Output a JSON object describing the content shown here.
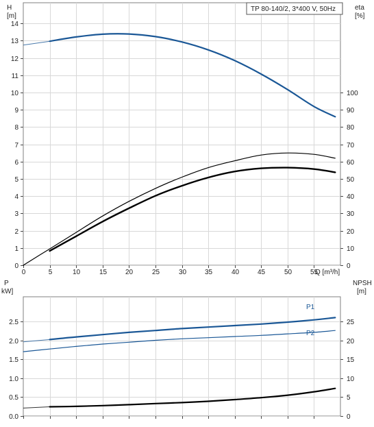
{
  "title": "TP 80-140/2, 3*400 V, 50Hz",
  "colors": {
    "blue": "#1a5796",
    "black": "#000000"
  },
  "chart_data": [
    {
      "type": "line",
      "x_label": "Q [m³/h]",
      "x_ticks": [
        0,
        5,
        10,
        15,
        20,
        25,
        30,
        35,
        40,
        45,
        50,
        55
      ],
      "xlim": [
        0,
        60
      ],
      "left_axis": {
        "label_top": "H",
        "label_unit": "[m]",
        "ticks": [
          0,
          1,
          2,
          3,
          4,
          5,
          6,
          7,
          8,
          9,
          10,
          11,
          12,
          13,
          14
        ],
        "ylim": [
          0,
          15.2
        ]
      },
      "right_axis": {
        "label_top": "eta",
        "label_unit": "[%]",
        "ticks": [
          0,
          10,
          20,
          30,
          40,
          50,
          60,
          70,
          80,
          90,
          100
        ],
        "ylim": [
          0,
          152
        ]
      },
      "series": [
        {
          "axis": "left",
          "color": "#1a5796",
          "style": "solid",
          "width": 2.2,
          "x": [
            5,
            10,
            15,
            20,
            25,
            30,
            35,
            40,
            45,
            50,
            55,
            59
          ],
          "y": [
            12.97,
            13.22,
            13.38,
            13.39,
            13.24,
            12.93,
            12.47,
            11.85,
            11.07,
            10.17,
            9.19,
            8.6
          ],
          "extension": {
            "x": [
              0,
              5
            ],
            "y": [
              12.75,
              12.97
            ]
          }
        },
        {
          "axis": "right",
          "color": "#000000",
          "style": "solid",
          "width": 1.2,
          "x": [
            0,
            5,
            10,
            15,
            20,
            25,
            30,
            35,
            40,
            45,
            50,
            55,
            59
          ],
          "y": [
            0,
            9.5,
            19,
            28.5,
            37,
            44.5,
            51,
            56.5,
            60.5,
            63.8,
            65,
            64.2,
            62
          ]
        },
        {
          "axis": "right",
          "color": "#000000",
          "style": "solid",
          "width": 2.4,
          "x": [
            5,
            10,
            15,
            20,
            25,
            30,
            35,
            40,
            45,
            50,
            55,
            59
          ],
          "y": [
            8.3,
            16.8,
            25.3,
            33,
            40.2,
            46,
            50.8,
            54.3,
            56.1,
            56.5,
            55.7,
            53.8
          ]
        }
      ]
    },
    {
      "type": "line",
      "x_label": "",
      "xlim": [
        0,
        60
      ],
      "left_axis": {
        "label_top": "P",
        "label_unit": "kW]",
        "ticks": [
          "0.0",
          "0.5",
          "1.0",
          "1.5",
          "2.0",
          "2.5"
        ],
        "ylim": [
          0,
          3.15
        ]
      },
      "right_axis": {
        "label_top": "NPSH",
        "label_unit": "[m]",
        "ticks": [
          0,
          5,
          10,
          15,
          20,
          25
        ],
        "ylim": [
          0,
          31.5
        ]
      },
      "series": [
        {
          "name": "P1",
          "axis": "left",
          "color": "#1a5796",
          "style": "solid",
          "width": 2.2,
          "x": [
            5,
            10,
            15,
            20,
            25,
            30,
            35,
            40,
            45,
            50,
            55,
            59
          ],
          "y": [
            2.02,
            2.09,
            2.15,
            2.21,
            2.26,
            2.31,
            2.35,
            2.39,
            2.43,
            2.48,
            2.54,
            2.6
          ],
          "extension": {
            "x": [
              0,
              5
            ],
            "y": [
              1.96,
              2.02
            ]
          }
        },
        {
          "name": "P2",
          "axis": "left",
          "color": "#1a5796",
          "style": "solid",
          "width": 1.2,
          "x": [
            0,
            5,
            10,
            15,
            20,
            25,
            30,
            35,
            40,
            45,
            50,
            55,
            59
          ],
          "y": [
            1.7,
            1.77,
            1.84,
            1.9,
            1.95,
            2.0,
            2.04,
            2.07,
            2.1,
            2.13,
            2.17,
            2.21,
            2.26
          ]
        },
        {
          "axis": "right",
          "color": "#000000",
          "style": "solid",
          "width": 2.2,
          "x": [
            5,
            10,
            15,
            20,
            25,
            30,
            35,
            40,
            45,
            50,
            55,
            59
          ],
          "y": [
            2.45,
            2.55,
            2.75,
            3.0,
            3.3,
            3.55,
            3.9,
            4.35,
            4.85,
            5.5,
            6.4,
            7.3
          ],
          "extension": {
            "x": [
              0,
              5
            ],
            "y": [
              2.1,
              2.45
            ]
          }
        }
      ]
    }
  ]
}
